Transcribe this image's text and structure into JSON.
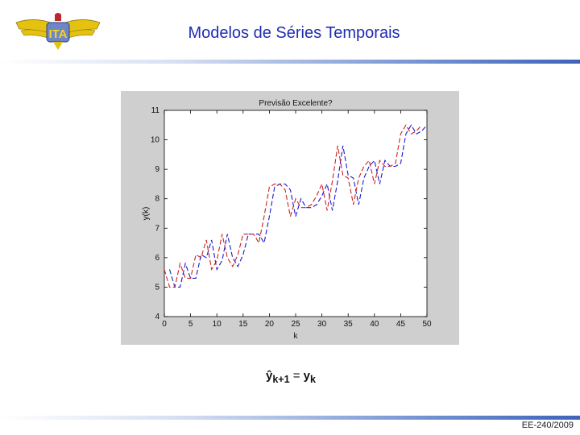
{
  "header": {
    "title": "Modelos de Séries Temporais",
    "logo_text": "ITA"
  },
  "chart_data": {
    "type": "line",
    "title": "Previsão Excelente?",
    "xlabel": "k",
    "ylabel": "y(k)",
    "xlim": [
      0,
      50
    ],
    "ylim": [
      4,
      11
    ],
    "xticks": [
      0,
      5,
      10,
      15,
      20,
      25,
      30,
      35,
      40,
      45,
      50
    ],
    "yticks": [
      4,
      5,
      6,
      7,
      8,
      9,
      10,
      11
    ],
    "grid": false,
    "series": [
      {
        "color": "#1a1acc",
        "style": "dashed",
        "x": [
          1,
          2,
          3,
          4,
          5,
          6,
          7,
          8,
          9,
          10,
          11,
          12,
          13,
          14,
          15,
          16,
          17,
          18,
          19,
          20,
          21,
          22,
          23,
          24,
          25,
          26,
          27,
          28,
          29,
          30,
          31,
          32,
          33,
          34,
          35,
          36,
          37,
          38,
          39,
          40,
          41,
          42,
          43,
          44,
          45,
          46,
          47,
          48,
          49,
          50
        ],
        "values": [
          5.6,
          5.0,
          5.0,
          5.8,
          5.3,
          5.3,
          6.1,
          6.0,
          6.6,
          5.6,
          5.9,
          6.8,
          6.0,
          5.7,
          6.1,
          6.8,
          6.8,
          6.8,
          6.5,
          7.4,
          8.4,
          8.5,
          8.5,
          8.3,
          7.4,
          8.0,
          7.7,
          7.7,
          7.8,
          8.1,
          8.5,
          7.6,
          8.6,
          9.8,
          8.8,
          8.7,
          7.8,
          8.7,
          9.1,
          9.3,
          8.5,
          9.3,
          9.1,
          9.1,
          9.2,
          10.2,
          10.5,
          10.2,
          10.3,
          10.5
        ]
      },
      {
        "color": "#d21f1f",
        "style": "dashed",
        "x": [
          0,
          1,
          2,
          3,
          4,
          5,
          6,
          7,
          8,
          9,
          10,
          11,
          12,
          13,
          14,
          15,
          16,
          17,
          18,
          19,
          20,
          21,
          22,
          23,
          24,
          25,
          26,
          27,
          28,
          29,
          30,
          31,
          32,
          33,
          34,
          35,
          36,
          37,
          38,
          39,
          40,
          41,
          42,
          43,
          44,
          45,
          46,
          47,
          48,
          49
        ],
        "values": [
          5.6,
          5.0,
          5.0,
          5.8,
          5.3,
          5.3,
          6.1,
          6.0,
          6.6,
          5.6,
          5.9,
          6.8,
          6.0,
          5.7,
          6.1,
          6.8,
          6.8,
          6.8,
          6.5,
          7.4,
          8.4,
          8.5,
          8.5,
          8.3,
          7.4,
          8.0,
          7.7,
          7.7,
          7.8,
          8.1,
          8.5,
          7.6,
          8.6,
          9.8,
          8.8,
          8.7,
          7.8,
          8.7,
          9.1,
          9.3,
          8.5,
          9.3,
          9.1,
          9.1,
          9.2,
          10.2,
          10.5,
          10.2,
          10.3,
          10.5
        ]
      }
    ]
  },
  "formula": {
    "lhs": "ŷ",
    "lhs_sub": "k+1",
    "equals": "=",
    "rhs": "y",
    "rhs_sub": "k"
  },
  "footer": {
    "course": "EE-240/2009"
  }
}
